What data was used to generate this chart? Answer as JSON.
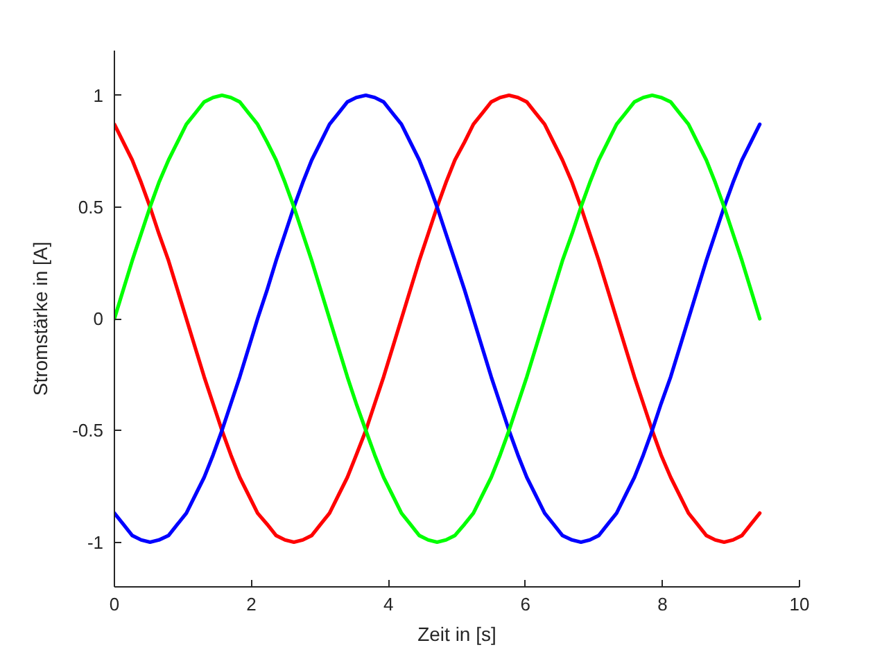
{
  "chart_data": {
    "type": "line",
    "xlabel": "Zeit in [s]",
    "ylabel": "Stromstärke in [A]",
    "x": [
      0,
      0.13,
      0.26,
      0.39,
      0.52,
      0.65,
      0.79,
      0.92,
      1.05,
      1.18,
      1.31,
      1.44,
      1.57,
      1.7,
      1.83,
      1.96,
      2.09,
      2.23,
      2.36,
      2.49,
      2.62,
      2.75,
      2.88,
      3.01,
      3.14,
      3.27,
      3.4,
      3.53,
      3.67,
      3.8,
      3.93,
      4.06,
      4.19,
      4.32,
      4.45,
      4.58,
      4.71,
      4.84,
      4.97,
      5.11,
      5.24,
      5.37,
      5.5,
      5.63,
      5.76,
      5.89,
      6.02,
      6.15,
      6.28,
      6.41,
      6.54,
      6.68,
      6.81,
      6.94,
      7.07,
      7.2,
      7.33,
      7.46,
      7.59,
      7.72,
      7.85,
      7.98,
      8.12,
      8.25,
      8.38,
      8.51,
      8.64,
      8.77,
      8.9,
      9.03,
      9.16,
      9.29,
      9.42
    ],
    "series": [
      {
        "color": "#ff0000",
        "values": [
          0.87,
          0.79,
          0.71,
          0.61,
          0.5,
          0.38,
          0.26,
          0.13,
          0,
          -0.13,
          -0.26,
          -0.38,
          -0.5,
          -0.61,
          -0.71,
          -0.79,
          -0.87,
          -0.92,
          -0.97,
          -0.99,
          -1,
          -0.99,
          -0.97,
          -0.92,
          -0.87,
          -0.79,
          -0.71,
          -0.61,
          -0.5,
          -0.38,
          -0.26,
          -0.13,
          0,
          0.13,
          0.26,
          0.38,
          0.5,
          0.61,
          0.71,
          0.79,
          0.87,
          0.92,
          0.97,
          0.99,
          1,
          0.99,
          0.97,
          0.92,
          0.87,
          0.79,
          0.71,
          0.61,
          0.5,
          0.38,
          0.26,
          0.13,
          0,
          -0.13,
          -0.26,
          -0.38,
          -0.5,
          -0.61,
          -0.71,
          -0.79,
          -0.87,
          -0.92,
          -0.97,
          -0.99,
          -1,
          -0.99,
          -0.97,
          -0.92,
          -0.87
        ]
      },
      {
        "color": "#0000ff",
        "values": [
          -0.87,
          -0.92,
          -0.97,
          -0.99,
          -1,
          -0.99,
          -0.97,
          -0.92,
          -0.87,
          -0.79,
          -0.71,
          -0.61,
          -0.5,
          -0.38,
          -0.26,
          -0.13,
          0,
          0.13,
          0.26,
          0.38,
          0.5,
          0.61,
          0.71,
          0.79,
          0.87,
          0.92,
          0.97,
          0.99,
          1,
          0.99,
          0.97,
          0.92,
          0.87,
          0.79,
          0.71,
          0.61,
          0.5,
          0.38,
          0.26,
          0.13,
          0,
          -0.13,
          -0.26,
          -0.38,
          -0.5,
          -0.61,
          -0.71,
          -0.79,
          -0.87,
          -0.92,
          -0.97,
          -0.99,
          -1,
          -0.99,
          -0.97,
          -0.92,
          -0.87,
          -0.79,
          -0.71,
          -0.61,
          -0.5,
          -0.38,
          -0.26,
          -0.13,
          0,
          0.13,
          0.26,
          0.38,
          0.5,
          0.61,
          0.71,
          0.79,
          0.87
        ]
      },
      {
        "color": "#00ff00",
        "values": [
          0,
          0.13,
          0.26,
          0.38,
          0.5,
          0.61,
          0.71,
          0.79,
          0.87,
          0.92,
          0.97,
          0.99,
          1,
          0.99,
          0.97,
          0.92,
          0.87,
          0.79,
          0.71,
          0.61,
          0.5,
          0.38,
          0.26,
          0.13,
          0,
          -0.13,
          -0.26,
          -0.38,
          -0.5,
          -0.61,
          -0.71,
          -0.79,
          -0.87,
          -0.92,
          -0.97,
          -0.99,
          -1,
          -0.99,
          -0.97,
          -0.92,
          -0.87,
          -0.79,
          -0.71,
          -0.61,
          -0.5,
          -0.38,
          -0.26,
          -0.13,
          0,
          0.13,
          0.26,
          0.38,
          0.5,
          0.61,
          0.71,
          0.79,
          0.87,
          0.92,
          0.97,
          0.99,
          1,
          0.99,
          0.97,
          0.92,
          0.87,
          0.79,
          0.71,
          0.61,
          0.5,
          0.38,
          0.26,
          0.13,
          0
        ]
      }
    ],
    "xlim": [
      0,
      10
    ],
    "xticks": [
      0,
      2,
      4,
      6,
      8,
      10
    ],
    "ylim": [
      -1.2,
      1.2
    ],
    "yticks": [
      -1,
      -0.5,
      0,
      0.5,
      1
    ],
    "line_style": "solid"
  }
}
